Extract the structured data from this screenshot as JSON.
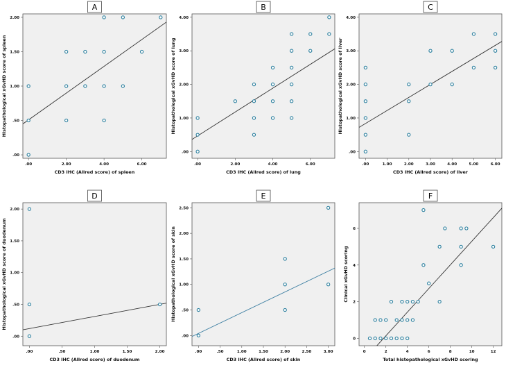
{
  "figure": {
    "title": ""
  },
  "chart_data": [
    {
      "panel": "A",
      "type": "scatter",
      "xlabel": "CD3 IHC (Allred score) of spleen",
      "ylabel": "Histopathological xGvHD score of spleen",
      "xlim": [
        -0.3,
        7.3
      ],
      "ylim": [
        -0.05,
        2.05
      ],
      "xticks": [
        0,
        2,
        4,
        6
      ],
      "xtick_labels": [
        ".00",
        "2.00",
        "4.00",
        "6.00"
      ],
      "yticks": [
        0,
        0.5,
        1.0,
        1.5,
        2.0
      ],
      "ytick_labels": [
        ".00",
        ".50",
        "1.00",
        "1.50",
        "2.00"
      ],
      "points": [
        [
          0,
          0
        ],
        [
          0,
          0.5
        ],
        [
          0,
          1.0
        ],
        [
          2,
          0.5
        ],
        [
          2,
          1.0
        ],
        [
          2,
          1.5
        ],
        [
          3,
          1.0
        ],
        [
          3,
          1.5
        ],
        [
          4,
          0.5
        ],
        [
          4,
          1.0
        ],
        [
          4,
          1.5
        ],
        [
          4,
          2.0
        ],
        [
          5,
          1.0
        ],
        [
          5,
          2.0
        ],
        [
          6,
          1.5
        ],
        [
          7,
          2.0
        ]
      ],
      "fit_line": [
        [
          -0.3,
          0.45
        ],
        [
          7.3,
          1.93
        ]
      ],
      "line_color": "#333333",
      "marker_color": "#2b7f9e"
    },
    {
      "panel": "B",
      "type": "scatter",
      "xlabel": "CD3 IHC (Allred score) of lung",
      "ylabel": "Histopathological xGvHD score of lung",
      "xlim": [
        -0.3,
        7.3
      ],
      "ylim": [
        -0.2,
        4.1
      ],
      "xticks": [
        0,
        2,
        4,
        6
      ],
      "xtick_labels": [
        ".00",
        "2.00",
        "4.00",
        "6.00"
      ],
      "yticks": [
        0,
        1,
        2,
        3,
        4
      ],
      "ytick_labels": [
        ".00",
        "1.00",
        "2.00",
        "3.00",
        "4.00"
      ],
      "points": [
        [
          0,
          0
        ],
        [
          0,
          0.5
        ],
        [
          0,
          1.0
        ],
        [
          2,
          1.5
        ],
        [
          3,
          0.5
        ],
        [
          3,
          1.0
        ],
        [
          3,
          1.5
        ],
        [
          3,
          2.0
        ],
        [
          4,
          1.0
        ],
        [
          4,
          1.5
        ],
        [
          4,
          2.0
        ],
        [
          4,
          2.5
        ],
        [
          5,
          1.0
        ],
        [
          5,
          1.5
        ],
        [
          5,
          2.0
        ],
        [
          5,
          2.5
        ],
        [
          5,
          3.0
        ],
        [
          5,
          3.5
        ],
        [
          6,
          3.0
        ],
        [
          6,
          3.5
        ],
        [
          7,
          3.5
        ],
        [
          7,
          4.0
        ]
      ],
      "fit_line": [
        [
          -0.3,
          0.36
        ],
        [
          7.3,
          3.06
        ]
      ],
      "line_color": "#333333",
      "marker_color": "#2b7f9e"
    },
    {
      "panel": "C",
      "type": "scatter",
      "xlabel": "CD3 IHC (Allred score) of liver",
      "ylabel": "Histopathological xGvHD score of liver",
      "xlim": [
        -0.3,
        6.3
      ],
      "ylim": [
        -0.2,
        4.1
      ],
      "xticks": [
        0,
        1,
        2,
        3,
        4,
        5,
        6
      ],
      "xtick_labels": [
        ".00",
        "1.00",
        "2.00",
        "3.00",
        "4.00",
        "5.00",
        "6.00"
      ],
      "yticks": [
        0,
        1,
        2,
        3,
        4
      ],
      "ytick_labels": [
        ".00",
        "1.00",
        "2.00",
        "3.00",
        "4.00"
      ],
      "points": [
        [
          0,
          0
        ],
        [
          0,
          0.5
        ],
        [
          0,
          1.0
        ],
        [
          0,
          1.5
        ],
        [
          0,
          2.0
        ],
        [
          0,
          2.5
        ],
        [
          2,
          0.5
        ],
        [
          2,
          1.5
        ],
        [
          2,
          2.0
        ],
        [
          3,
          2.0
        ],
        [
          3,
          3.0
        ],
        [
          4,
          2.0
        ],
        [
          4,
          3.0
        ],
        [
          5,
          2.5
        ],
        [
          5,
          3.5
        ],
        [
          6,
          2.5
        ],
        [
          6,
          3.0
        ],
        [
          6,
          3.5
        ]
      ],
      "fit_line": [
        [
          -0.3,
          0.72
        ],
        [
          6.3,
          3.28
        ]
      ],
      "line_color": "#333333",
      "marker_color": "#2b7f9e"
    },
    {
      "panel": "D",
      "type": "scatter",
      "xlabel": "CD3 IHC (Allred score) of duodenum",
      "ylabel": "Histopathological xGvHD score of duodenum",
      "xlim": [
        -0.1,
        2.1
      ],
      "ylim": [
        -0.15,
        2.1
      ],
      "xticks": [
        0,
        0.5,
        1.0,
        1.5,
        2.0
      ],
      "xtick_labels": [
        ".00",
        ".50",
        "1.00",
        "1.50",
        "2.00"
      ],
      "yticks": [
        0,
        0.5,
        1.0,
        1.5,
        2.0
      ],
      "ytick_labels": [
        ".00",
        ".50",
        "1.00",
        "1.50",
        "2.00"
      ],
      "points": [
        [
          0,
          0
        ],
        [
          0,
          0.5
        ],
        [
          0,
          2.0
        ],
        [
          2,
          0.5
        ]
      ],
      "fit_line": [
        [
          -0.1,
          0.1
        ],
        [
          2.1,
          0.52
        ]
      ],
      "line_color": "#333333",
      "marker_color": "#2b7f9e"
    },
    {
      "panel": "E",
      "type": "scatter",
      "xlabel": "CD3 IHC (Allred score) of skin",
      "ylabel": "Histopathological xGvHD score of skin",
      "xlim": [
        -0.15,
        3.15
      ],
      "ylim": [
        -0.2,
        2.6
      ],
      "xticks": [
        0,
        0.5,
        1.0,
        1.5,
        2.0,
        2.5,
        3.0
      ],
      "xtick_labels": [
        ".00",
        ".50",
        "1.00",
        "1.50",
        "2.00",
        "2.50",
        "3.00"
      ],
      "yticks": [
        0,
        0.5,
        1.0,
        1.5,
        2.0,
        2.5
      ],
      "ytick_labels": [
        ".00",
        ".50",
        "1.00",
        "1.50",
        "2.00",
        "2.50"
      ],
      "points": [
        [
          0,
          0
        ],
        [
          0,
          0.5
        ],
        [
          2,
          0.5
        ],
        [
          2,
          1.0
        ],
        [
          2,
          1.5
        ],
        [
          3,
          1.0
        ],
        [
          3,
          2.5
        ]
      ],
      "fit_line": [
        [
          -0.15,
          -0.02
        ],
        [
          3.15,
          1.32
        ]
      ],
      "line_color": "#3b7ea1",
      "marker_color": "#2b7f9e"
    },
    {
      "panel": "F",
      "type": "scatter",
      "xlabel": "Total histopathological xGvHD scoring",
      "ylabel": "Clinical xGvHD scoring",
      "xlim": [
        -0.5,
        12.8
      ],
      "ylim": [
        -0.4,
        7.4
      ],
      "xticks": [
        0,
        2,
        4,
        6,
        8,
        10,
        12
      ],
      "xtick_labels": [
        "0",
        "2",
        "4",
        "6",
        "8",
        "10",
        "12"
      ],
      "yticks": [
        0,
        2,
        4,
        6
      ],
      "ytick_labels": [
        "0",
        "2",
        "4",
        "6"
      ],
      "points": [
        [
          0.5,
          0
        ],
        [
          1,
          0
        ],
        [
          1,
          1
        ],
        [
          1.5,
          0
        ],
        [
          1.5,
          1
        ],
        [
          2,
          0
        ],
        [
          2,
          1
        ],
        [
          2.5,
          0
        ],
        [
          2.5,
          2
        ],
        [
          3,
          0
        ],
        [
          3,
          1
        ],
        [
          3.5,
          0
        ],
        [
          3.5,
          1
        ],
        [
          3.5,
          2
        ],
        [
          4,
          0
        ],
        [
          4,
          1
        ],
        [
          4,
          2
        ],
        [
          4.5,
          1
        ],
        [
          4.5,
          2
        ],
        [
          5,
          2
        ],
        [
          5.5,
          4
        ],
        [
          5.5,
          7
        ],
        [
          6,
          3
        ],
        [
          7,
          2
        ],
        [
          7,
          5
        ],
        [
          7.5,
          6
        ],
        [
          9,
          4
        ],
        [
          9,
          5
        ],
        [
          9,
          6
        ],
        [
          9.5,
          6
        ],
        [
          12,
          5
        ]
      ],
      "fit_line": [
        [
          -0.5,
          -1.47
        ],
        [
          12.8,
          7.1
        ]
      ],
      "line_color": "#333333",
      "marker_color": "#2b7f9e"
    }
  ]
}
